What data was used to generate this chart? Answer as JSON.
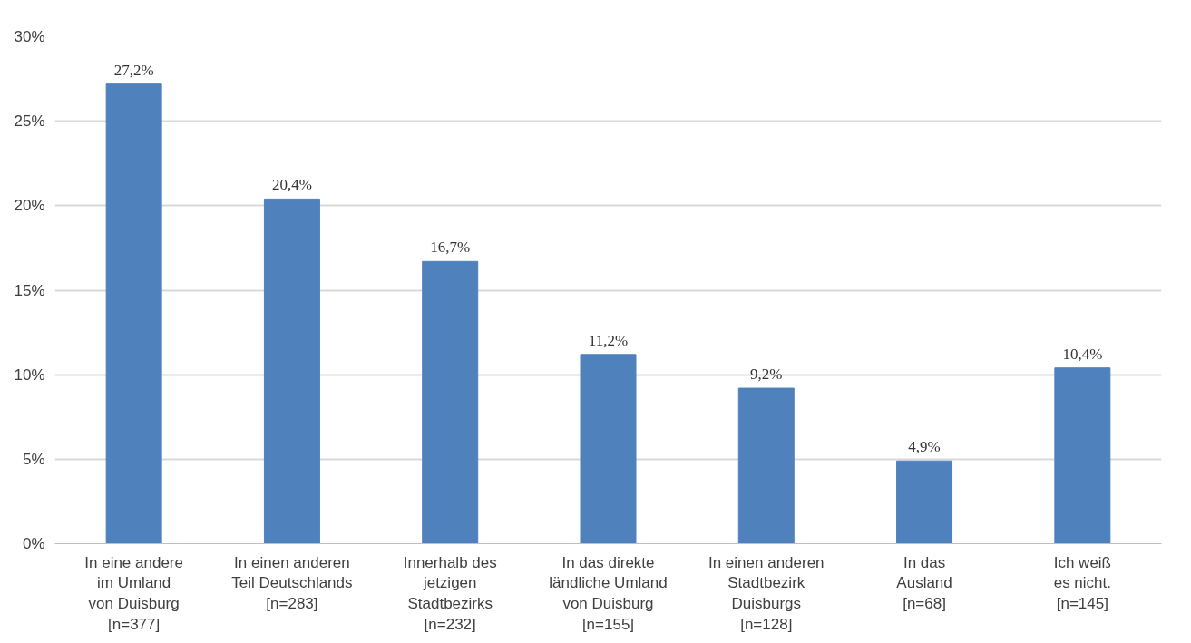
{
  "chart_data": {
    "type": "bar",
    "categories": [
      "In eine andere\nim Umland\nvon Duisburg\n[n=377]",
      "In einen anderen\nTeil Deutschlands\n[n=283]",
      "Innerhalb des\njetzigen\nStadtbezirks\n[n=232]",
      "In das direkte\nländliche Umland\nvon Duisburg\n[n=155]",
      "In einen anderen\nStadtbezirk\nDuisburgs\n[n=128]",
      "In das\nAusland\n[n=68]",
      "Ich weiß\nes nicht.\n[n=145]"
    ],
    "values": [
      27.2,
      20.4,
      16.7,
      11.2,
      9.2,
      4.9,
      10.4
    ],
    "value_labels": [
      "27,2%",
      "20,4%",
      "16,7%",
      "11,2%",
      "9,2%",
      "4,9%",
      "10,4%"
    ],
    "color": "#4f81bd",
    "ylim": [
      0,
      30
    ],
    "yticks": [
      {
        "value": 0,
        "label": "0%"
      },
      {
        "value": 5,
        "label": "5%"
      },
      {
        "value": 10,
        "label": "10%"
      },
      {
        "value": 15,
        "label": "15%"
      },
      {
        "value": 20,
        "label": "20%"
      },
      {
        "value": 25,
        "label": "25%"
      },
      {
        "value": 30,
        "label": "30%"
      }
    ],
    "grid": "y"
  }
}
